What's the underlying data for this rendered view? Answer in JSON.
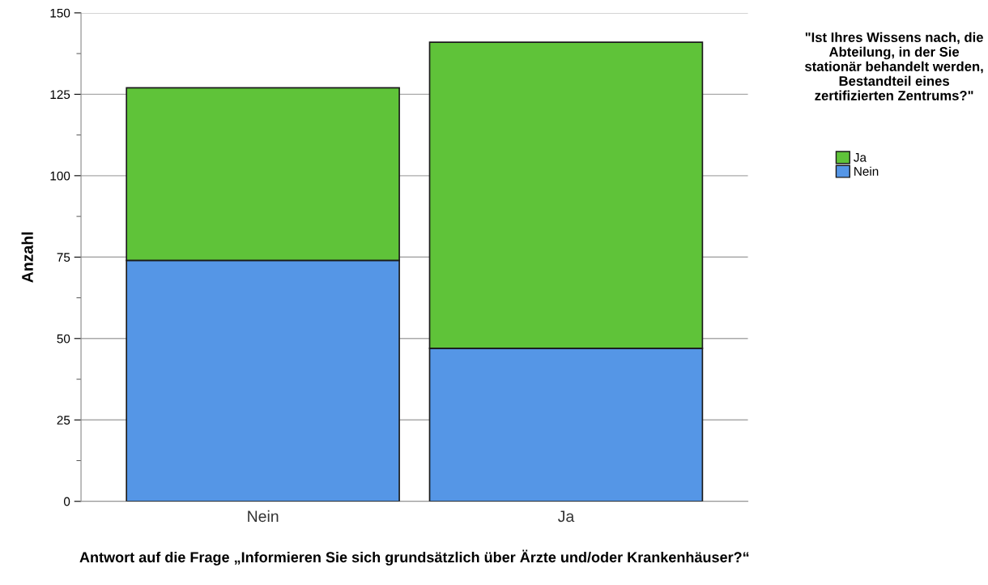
{
  "chart_data": {
    "type": "bar",
    "stacked": true,
    "xlabel": "Antwort auf die Frage „Informieren Sie sich grundsätzlich über Ärzte und/oder Krankenhäuser?“",
    "ylabel": "Anzahl",
    "legend_title": "\"Ist Ihres Wissens nach, die Abteilung, in der Sie stationär behandelt werden, Bestandteil eines zertifizierten Zentrums?\"",
    "categories": [
      "Nein",
      "Ja"
    ],
    "series": [
      {
        "name": "Nein",
        "color": "#5596e6",
        "values": [
          74,
          47
        ]
      },
      {
        "name": "Ja",
        "color": "#5fc339",
        "values": [
          53,
          94
        ]
      }
    ],
    "ylim": [
      0,
      150
    ],
    "yticks": [
      0,
      25,
      50,
      75,
      100,
      125,
      150
    ],
    "grid": "y",
    "legend": "right"
  }
}
